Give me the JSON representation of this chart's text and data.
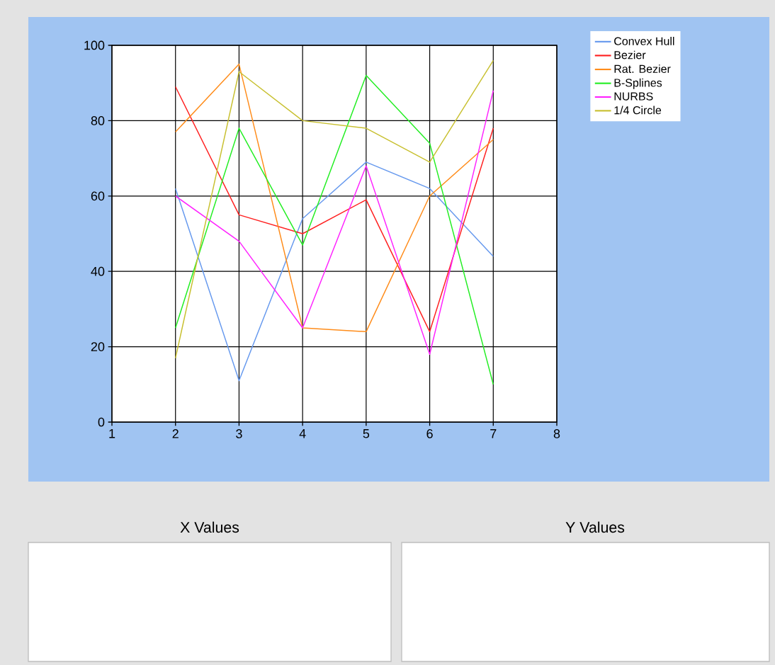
{
  "chart_data": {
    "type": "line",
    "x": [
      2,
      3,
      4,
      5,
      6,
      7
    ],
    "xlim": [
      1,
      8
    ],
    "xticks": [
      1,
      2,
      3,
      4,
      5,
      6,
      7,
      8
    ],
    "ylim": [
      0,
      100
    ],
    "yticks": [
      0,
      20,
      40,
      60,
      80,
      100
    ],
    "grid": true,
    "legend": "top right",
    "marker": "none",
    "line_style": "solid",
    "annotations": [
      "X Values",
      "Y Values"
    ],
    "series": [
      {
        "name": "Convex Hull",
        "color": "#6699ee",
        "values": [
          62,
          11,
          54,
          69,
          62,
          44
        ]
      },
      {
        "name": "Bezier",
        "color": "#ff2020",
        "values": [
          89,
          55,
          50,
          59,
          24,
          78
        ]
      },
      {
        "name": "Rat. Bezier",
        "color": "#ff8c1a",
        "values": [
          77,
          95,
          25,
          24,
          60,
          75
        ]
      },
      {
        "name": "B-Splines",
        "color": "#22ee22",
        "values": [
          25,
          78,
          47,
          92,
          74,
          10
        ]
      },
      {
        "name": "NURBS",
        "color": "#ff22ff",
        "values": [
          60,
          48,
          25,
          68,
          18,
          88
        ]
      },
      {
        "name": "1/4 Circle",
        "color": "#c8c030",
        "values": [
          17,
          93,
          80,
          78,
          69,
          96
        ]
      }
    ]
  }
}
